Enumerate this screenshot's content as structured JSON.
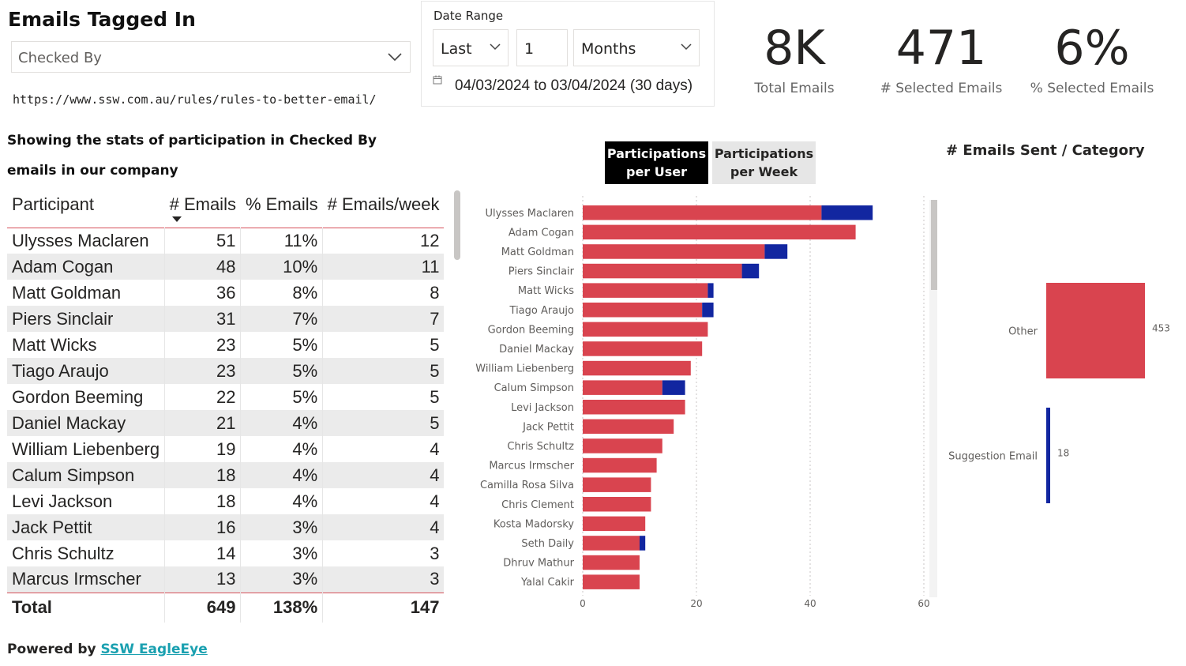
{
  "header": {
    "title": "Emails Tagged In",
    "slicer_value": "Checked By",
    "rule_url": "https://www.ssw.com.au/rules/rules-to-better-email/"
  },
  "date_range": {
    "label": "Date Range",
    "relative": "Last",
    "count": "1",
    "unit": "Months",
    "range_text": "04/03/2024 to 03/04/2024 (30 days)"
  },
  "kpis": {
    "total_emails": {
      "value": "8K",
      "label": "Total Emails"
    },
    "selected_emails": {
      "value": "471",
      "label": "# Selected Emails"
    },
    "pct_selected": {
      "value": "6%",
      "label": "% Selected Emails"
    }
  },
  "description": {
    "line1": "Showing the stats of participation in Checked By",
    "line2": "emails in our company"
  },
  "table": {
    "columns": [
      "Participant",
      "# Emails",
      "% Emails",
      "# Emails/week"
    ],
    "rows": [
      [
        "Ulysses Maclaren",
        "51",
        "11%",
        "12"
      ],
      [
        "Adam Cogan",
        "48",
        "10%",
        "11"
      ],
      [
        "Matt Goldman",
        "36",
        "8%",
        "8"
      ],
      [
        "Piers Sinclair",
        "31",
        "7%",
        "7"
      ],
      [
        "Matt Wicks",
        "23",
        "5%",
        "5"
      ],
      [
        "Tiago Araujo",
        "23",
        "5%",
        "5"
      ],
      [
        "Gordon Beeming",
        "22",
        "5%",
        "5"
      ],
      [
        "Daniel Mackay",
        "21",
        "4%",
        "5"
      ],
      [
        "William Liebenberg",
        "19",
        "4%",
        "4"
      ],
      [
        "Calum Simpson",
        "18",
        "4%",
        "4"
      ],
      [
        "Levi Jackson",
        "18",
        "4%",
        "4"
      ],
      [
        "Jack Pettit",
        "16",
        "3%",
        "4"
      ],
      [
        "Chris Schultz",
        "14",
        "3%",
        "3"
      ],
      [
        "Marcus Irmscher",
        "13",
        "3%",
        "3"
      ]
    ],
    "total": [
      "Total",
      "649",
      "138%",
      "147"
    ]
  },
  "footer": {
    "powered_by": "Powered by",
    "link_text": "SSW EagleEye"
  },
  "toggle": {
    "per_user_line1": "Participations",
    "per_user_line2": "per User",
    "per_week_line1": "Participations",
    "per_week_line2": "per Week"
  },
  "category_title": "# Emails Sent / Category",
  "colors": {
    "other": "#d9444f",
    "suggestion": "#1226a0"
  },
  "chart_data": [
    {
      "type": "bar",
      "orientation": "horizontal",
      "stacked": true,
      "categories": [
        "Ulysses Maclaren",
        "Adam Cogan",
        "Matt Goldman",
        "Piers Sinclair",
        "Matt Wicks",
        "Tiago Araujo",
        "Gordon Beeming",
        "Daniel Mackay",
        "William Liebenberg",
        "Calum Simpson",
        "Levi Jackson",
        "Jack Pettit",
        "Chris Schultz",
        "Marcus Irmscher",
        "Camilla Rosa Silva",
        "Chris Clement",
        "Kosta Madorsky",
        "Seth Daily",
        "Dhruv Mathur",
        "Yalal Cakir"
      ],
      "series": [
        {
          "values": [
            42,
            48,
            32,
            28,
            22,
            21,
            22,
            21,
            19,
            14,
            18,
            16,
            14,
            13,
            12,
            12,
            11,
            10,
            10,
            10
          ],
          "color": "#d9444f"
        },
        {
          "values": [
            9,
            0,
            4,
            3,
            1,
            2,
            0,
            0,
            0,
            4,
            0,
            0,
            0,
            0,
            0,
            0,
            0,
            1,
            0,
            0
          ],
          "color": "#1226a0"
        }
      ],
      "xlim": [
        0,
        60
      ],
      "xticks": [
        "0",
        "20",
        "40",
        "60"
      ],
      "grid": "vertical dotted"
    },
    {
      "type": "bar",
      "orientation": "horizontal",
      "title": "# Emails Sent / Category",
      "categories": [
        "Other",
        "Suggestion Email"
      ],
      "values": [
        453,
        18
      ],
      "data_labels": [
        "453",
        "18"
      ],
      "colors": [
        "#d9444f",
        "#1226a0"
      ]
    }
  ]
}
